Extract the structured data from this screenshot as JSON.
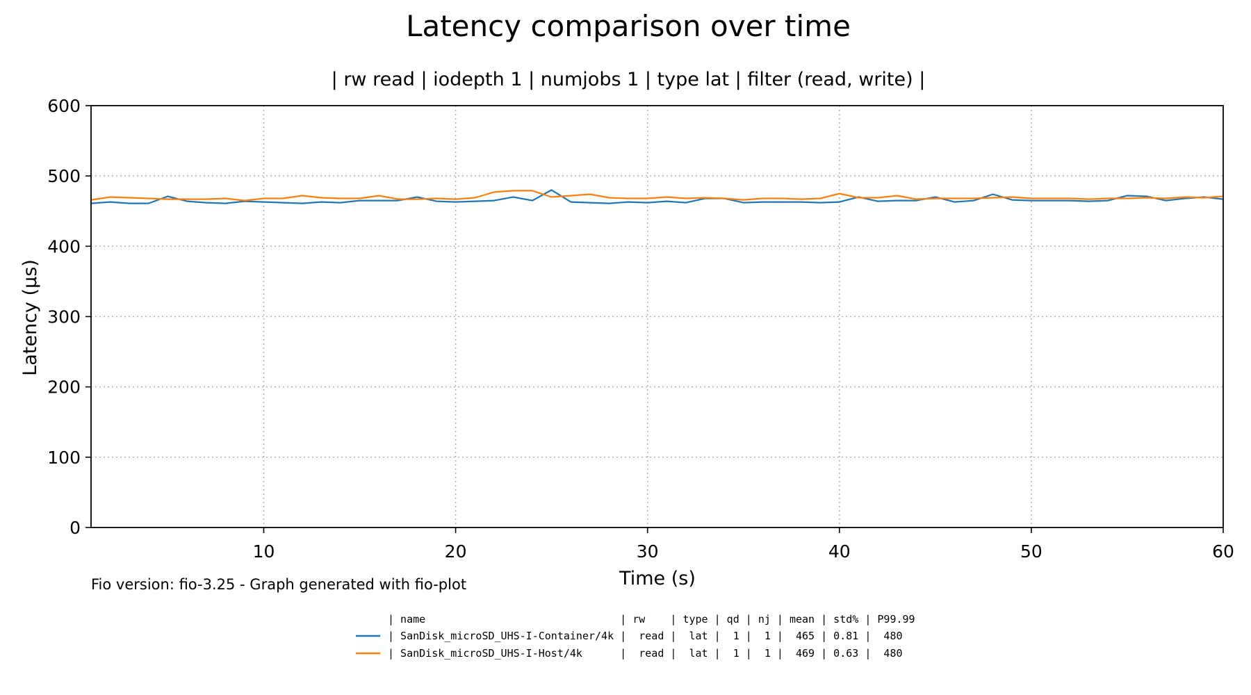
{
  "chart_data": {
    "type": "line",
    "title": "Latency comparison over time",
    "subtitle": "| rw read | iodepth 1 | numjobs 1 | type lat | filter (read, write) |",
    "xlabel": "Time (s)",
    "ylabel": "Latency (µs)",
    "xlim": [
      1,
      60
    ],
    "ylim": [
      0,
      600
    ],
    "xticks": [
      10,
      20,
      30,
      40,
      50,
      60
    ],
    "yticks": [
      0,
      100,
      200,
      300,
      400,
      500,
      600
    ],
    "grid": true,
    "footnote": "Fio version: fio-3.25 - Graph generated with fio-plot",
    "legend": {
      "placement": "bottom-center",
      "header": "| name                               | rw    | type | qd | nj | mean | std% | P99.99",
      "rows": [
        "| SanDisk_microSD_UHS-I-Container/4k |  read |  lat |  1 |  1 |  465 | 0.81 |  480",
        "| SanDisk_microSD_UHS-I-Host/4k      |  read |  lat |  1 |  1 |  469 | 0.63 |  480"
      ]
    },
    "x": [
      1,
      2,
      3,
      4,
      5,
      6,
      7,
      8,
      9,
      10,
      11,
      12,
      13,
      14,
      15,
      16,
      17,
      18,
      19,
      20,
      21,
      22,
      23,
      24,
      25,
      26,
      27,
      28,
      29,
      30,
      31,
      32,
      33,
      34,
      35,
      36,
      37,
      38,
      39,
      40,
      41,
      42,
      43,
      44,
      45,
      46,
      47,
      48,
      49,
      50,
      51,
      52,
      53,
      54,
      55,
      56,
      57,
      58,
      59,
      60
    ],
    "series": [
      {
        "name": "SanDisk_microSD_UHS-I-Container/4k",
        "color": "#1f77b4",
        "values": [
          461,
          463,
          461,
          461,
          471,
          464,
          462,
          461,
          464,
          463,
          462,
          461,
          463,
          462,
          465,
          465,
          465,
          470,
          464,
          463,
          464,
          465,
          470,
          465,
          480,
          463,
          462,
          461,
          463,
          462,
          464,
          462,
          468,
          468,
          462,
          463,
          463,
          463,
          462,
          463,
          470,
          464,
          465,
          465,
          470,
          463,
          465,
          474,
          466,
          465,
          465,
          465,
          464,
          465,
          472,
          471,
          465,
          468,
          470,
          467
        ]
      },
      {
        "name": "SanDisk_microSD_UHS-I-Host/4k",
        "color": "#ff7f0e",
        "values": [
          466,
          470,
          469,
          468,
          467,
          467,
          467,
          468,
          465,
          468,
          468,
          472,
          469,
          468,
          468,
          472,
          467,
          467,
          468,
          467,
          469,
          477,
          479,
          479,
          470,
          472,
          474,
          469,
          468,
          468,
          470,
          468,
          469,
          468,
          466,
          468,
          468,
          467,
          468,
          475,
          469,
          469,
          472,
          467,
          468,
          468,
          468,
          469,
          470,
          468,
          468,
          468,
          467,
          468,
          468,
          469,
          468,
          470,
          469,
          471
        ]
      }
    ]
  }
}
